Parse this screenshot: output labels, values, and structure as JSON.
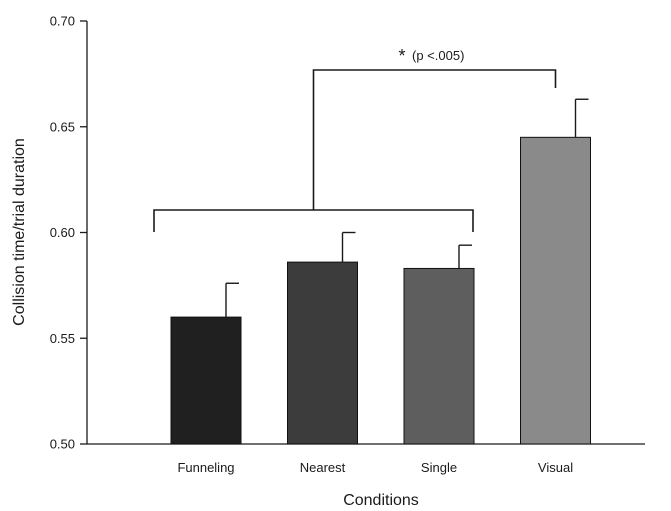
{
  "chart_data": {
    "type": "bar",
    "title": "",
    "xlabel": "Conditions",
    "ylabel": "Collision time/trial duration",
    "ylim": [
      0.5,
      0.7
    ],
    "yticks": [
      "0.50",
      "0.55",
      "0.60",
      "0.65",
      "0.70"
    ],
    "categories": [
      "Funneling",
      "Nearest",
      "Single",
      "Visual"
    ],
    "values": [
      0.56,
      0.586,
      0.583,
      0.645
    ],
    "errors": [
      0.016,
      0.014,
      0.011,
      0.018
    ],
    "bar_colors": [
      "#202020",
      "#3c3c3c",
      "#5e5e5e",
      "#8a8a8a"
    ],
    "grid": false,
    "legend": "none",
    "annotation": {
      "star": "*",
      "text": "(p <.005)",
      "group_categories": [
        "Funneling",
        "Nearest",
        "Single"
      ],
      "compare_category": "Visual"
    }
  }
}
